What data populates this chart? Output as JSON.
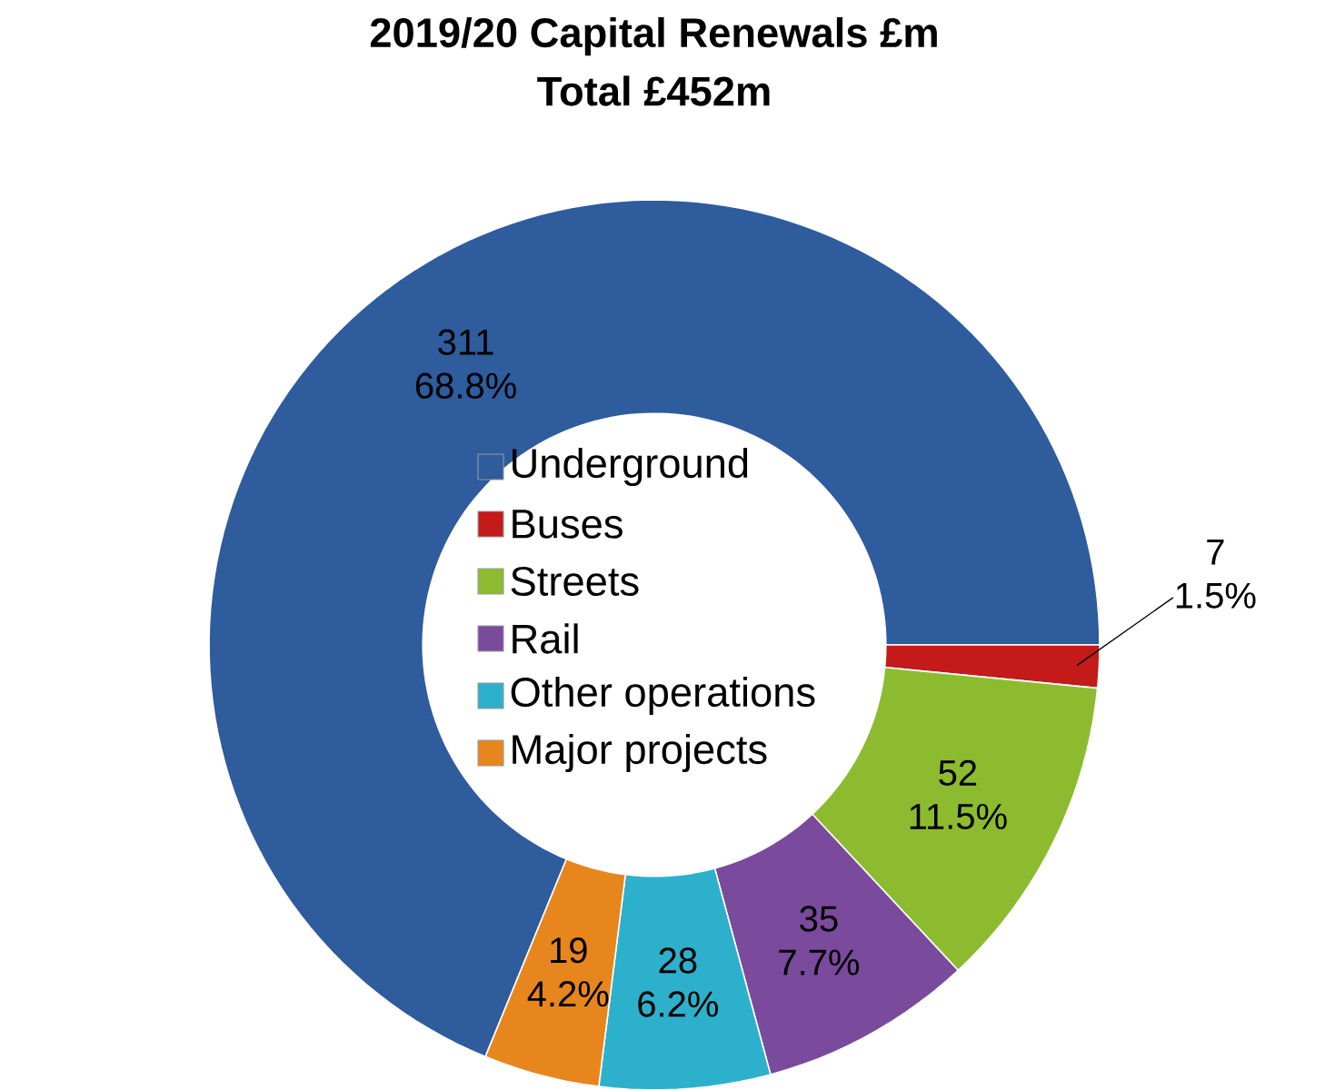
{
  "chart_data": {
    "type": "donut",
    "title": "2019/20 Capital Renewals £m",
    "subtitle": "Total £452m",
    "categories": [
      "Underground",
      "Buses",
      "Streets",
      "Rail",
      "Other operations",
      "Major projects"
    ],
    "values": [
      311,
      7,
      52,
      35,
      28,
      19
    ],
    "colors": [
      "#2e5c9c",
      "#c41a1a",
      "#8dbb2f",
      "#7a4a9c",
      "#2db0cc",
      "#e8861e"
    ],
    "value_labels": [
      "311 68.8%",
      "7 1.5%",
      "52 11.5%",
      "35 7.7%",
      "28 6.2%",
      "19 4.2%"
    ],
    "legend": "center"
  }
}
